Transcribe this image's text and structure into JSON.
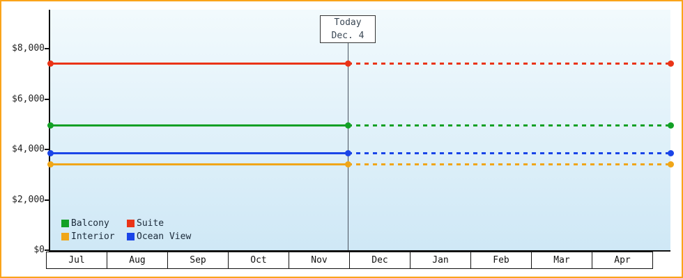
{
  "chart_data": {
    "type": "line",
    "title": "",
    "grid": false,
    "legend_position": "bottom-left",
    "x_axis": {
      "months": [
        "Jul",
        "Aug",
        "Sep",
        "Oct",
        "Nov",
        "Dec",
        "Jan",
        "Feb",
        "Mar",
        "Apr"
      ]
    },
    "y_axis": {
      "ticks": [
        {
          "label": "$0",
          "value": 0
        },
        {
          "label": "$2,000",
          "value": 2000
        },
        {
          "label": "$4,000",
          "value": 4000
        },
        {
          "label": "$6,000",
          "value": 6000
        },
        {
          "label": "$8,000",
          "value": 8000
        }
      ],
      "max": 9545,
      "ylim": [
        0,
        9545
      ]
    },
    "today_marker": {
      "line1": "Today",
      "line2": "Dec. 4",
      "x_fraction": 0.48
    },
    "series": [
      {
        "name": "Suite",
        "color": "#ea3417",
        "value": 7400
      },
      {
        "name": "Balcony",
        "color": "#12a025",
        "value": 4950
      },
      {
        "name": "Ocean View",
        "color": "#1a45e8",
        "value": 3850
      },
      {
        "name": "Interior",
        "color": "#f0a618",
        "value": 3400
      }
    ],
    "legend_rows": [
      [
        "Balcony",
        "Suite"
      ],
      [
        "Interior",
        "Ocean View"
      ]
    ]
  },
  "colors": {
    "frame_border": "#faa41a",
    "plot_bg_top": "#f2fafd",
    "plot_bg_bottom": "#cfe8f6",
    "axis": "#111111",
    "today_line": "#49525e",
    "text": "#222222"
  }
}
